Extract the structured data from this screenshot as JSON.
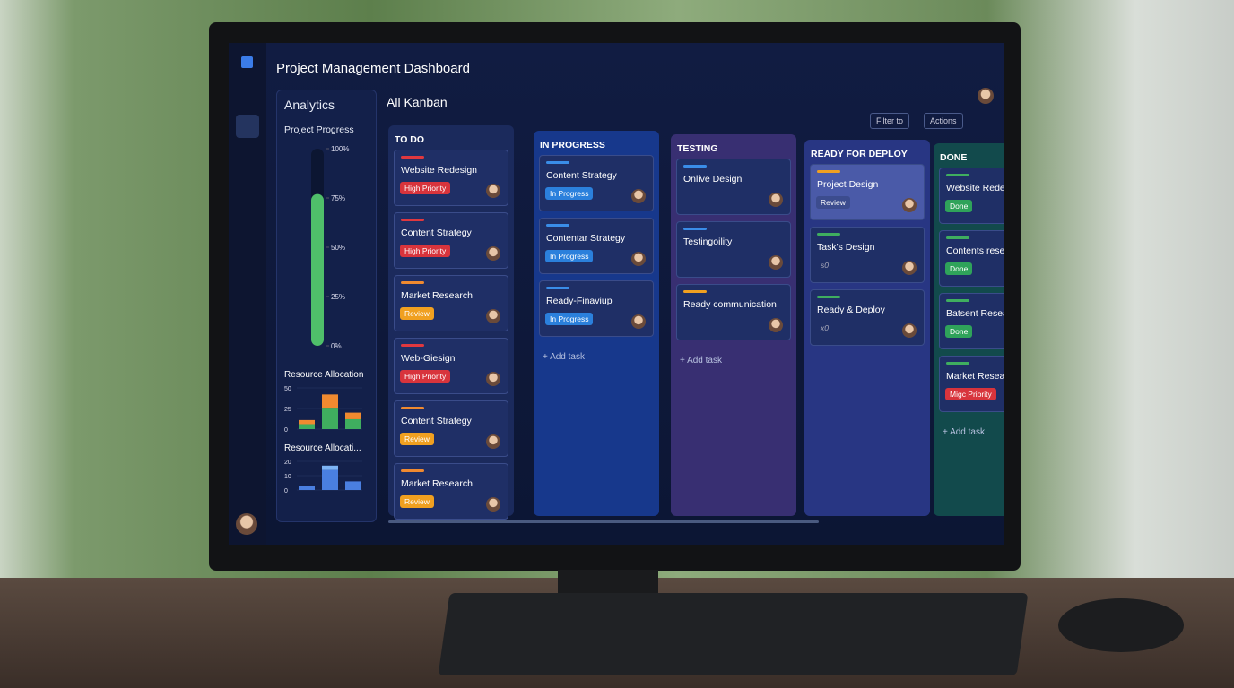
{
  "header": {
    "title": "Project Management Dashboard"
  },
  "analytics": {
    "title": "Analytics",
    "progress": {
      "title": "Project Progress",
      "value": 77,
      "color": "#4fbf6a",
      "ylim": [
        0,
        100
      ],
      "ticks": [
        {
          "value": 100,
          "label": "100%"
        },
        {
          "value": 75,
          "label": "75%"
        },
        {
          "value": 50,
          "label": "50%"
        },
        {
          "value": 25,
          "label": "25%"
        },
        {
          "value": 0,
          "label": "0%"
        }
      ]
    },
    "charts": [
      {
        "title": "Resource Allocation",
        "ylim": [
          0,
          50
        ],
        "yticks": [
          0,
          25,
          50
        ],
        "series": [
          {
            "color": "#3fae5f",
            "values": [
              6,
              26,
              12
            ]
          },
          {
            "color": "#f08a30",
            "values": [
              5,
              16,
              8
            ]
          }
        ]
      },
      {
        "title": "Resource Allocati...",
        "ylim": [
          0,
          20
        ],
        "yticks": [
          0,
          10,
          20
        ],
        "series": [
          {
            "color": "#4a7fe0",
            "values": [
              3,
              14,
              6
            ]
          },
          {
            "color": "#7db4f5",
            "values": [
              0,
              3,
              0
            ]
          }
        ]
      }
    ]
  },
  "board": {
    "title": "All Kanban",
    "filter": "Filter to",
    "actions": "Actions",
    "columns": [
      {
        "title": "TO DO",
        "color": "#1b2a5c",
        "add": null,
        "cards": [
          {
            "title": "Website Redesign",
            "tag": "High Priority",
            "tag_color": "#d8343c",
            "stripe": "#e0383f"
          },
          {
            "title": "Content Strategy",
            "tag": "High Priority",
            "tag_color": "#d8343c",
            "stripe": "#e0383f"
          },
          {
            "title": "Market Research",
            "tag": "Review",
            "tag_color": "#f0a020",
            "stripe": "#f08a30"
          },
          {
            "title": "Web-Giesign",
            "tag": "High Priority",
            "tag_color": "#d8343c",
            "stripe": "#e0383f"
          },
          {
            "title": "Content Strategy",
            "tag": "Review",
            "tag_color": "#f0a020",
            "stripe": "#f08a30"
          },
          {
            "title": "Market Research",
            "tag": "Review",
            "tag_color": "#f0a020",
            "stripe": "#f08a30"
          }
        ]
      },
      {
        "title": "IN PROGRESS",
        "color": "#17388c",
        "add": "+ Add task",
        "cards": [
          {
            "title": "Content Strategy",
            "tag": "In Progress",
            "tag_color": "#2b80dc",
            "stripe": "#3a8de8"
          },
          {
            "title": "Contentar Strategy",
            "tag": "In Progress",
            "tag_color": "#2b80dc",
            "stripe": "#3a8de8"
          },
          {
            "title": "Ready-Finaviup",
            "tag": "In Progress",
            "tag_color": "#2b80dc",
            "stripe": "#3a8de8"
          }
        ]
      },
      {
        "title": "TESTING",
        "color": "#382f72",
        "add": "+ Add task",
        "cards": [
          {
            "title": "Onlive Design",
            "tag": null,
            "tag_color": null,
            "stripe": "#3a8de8"
          },
          {
            "title": "Testingoility",
            "tag": null,
            "tag_color": null,
            "stripe": "#3a8de8"
          },
          {
            "title": "Ready communication",
            "tag": null,
            "tag_color": null,
            "stripe": "#f0a020"
          }
        ]
      },
      {
        "title": "READY FOR DEPLOY",
        "color": "#283683",
        "add": null,
        "cards": [
          {
            "title": "Project Design",
            "tag": "Review",
            "tag_color": "#3c4c8e",
            "stripe": "#f0a020"
          },
          {
            "title": "Task's Design",
            "tag": "s0",
            "tag_color": null,
            "stripe": "#3fae5f"
          },
          {
            "title": "Ready & Deploy",
            "tag": "x0",
            "tag_color": null,
            "stripe": "#3fae5f"
          }
        ]
      },
      {
        "title": "DONE",
        "color": "#124a4c",
        "add": "+ Add task",
        "cards": [
          {
            "title": "Website Redesi",
            "tag": "Done",
            "tag_color": "#2fa35a",
            "stripe": "#3fae5f"
          },
          {
            "title": "Contents resea",
            "tag": "Done",
            "tag_color": "#2fa35a",
            "stripe": "#3fae5f"
          },
          {
            "title": "Batsent Researc caskgign",
            "tag": "Done",
            "tag_color": "#2fa35a",
            "stripe": "#3fae5f"
          },
          {
            "title": "Market Researc",
            "tag": "Migc Priority",
            "tag_color": "#d8343c",
            "stripe": "#3fae5f"
          }
        ]
      }
    ]
  }
}
